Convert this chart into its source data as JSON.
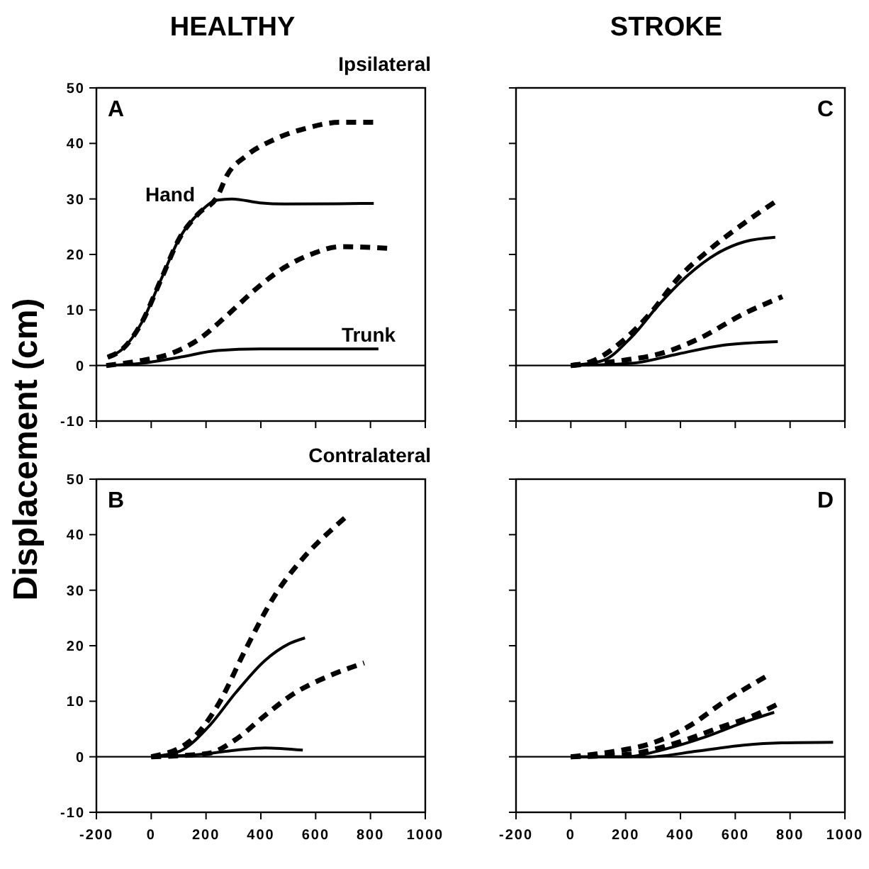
{
  "chart_data": [
    {
      "type": "line",
      "title": "HEALTHY",
      "subtitle": "Ipsilateral",
      "ylabel": "Displacement (cm)",
      "annotations": [
        "A",
        "Hand",
        "Trunk"
      ],
      "xlim": [
        -200,
        1000
      ],
      "xticks": [
        -200,
        0,
        200,
        400,
        600,
        800,
        1000
      ],
      "ylim": [
        -10,
        50
      ],
      "yticks": [
        -10,
        0,
        10,
        20,
        30,
        40,
        50
      ],
      "tick_labels": "y",
      "grid": false,
      "ref_lines": [
        {
          "axis": "y",
          "value": 0
        }
      ],
      "series": [
        {
          "color": "#000000",
          "line_style": "solid",
          "x": [
            -159,
            -104,
            -35,
            35,
            104,
            173,
            242,
            294,
            397,
            484,
            812
          ],
          "values": [
            1.5,
            3,
            7.7,
            15.4,
            23,
            27.4,
            29.8,
            30,
            29.3,
            29.1,
            29.2
          ]
        },
        {
          "color": "#000000",
          "line_style": "dashed",
          "x": [
            -159,
            -104,
            -35,
            35,
            104,
            173,
            242,
            276,
            345,
            449,
            570,
            691,
            829
          ],
          "values": [
            1.5,
            3,
            7.7,
            15.4,
            23,
            27.4,
            30.5,
            34.2,
            37.7,
            40.7,
            42.8,
            43.8,
            43.8
          ]
        },
        {
          "color": "#000000",
          "line_style": "dashed",
          "x": [
            -164,
            -35,
            69,
            173,
            276,
            380,
            484,
            587,
            691,
            864
          ],
          "values": [
            0,
            0.9,
            2.1,
            4.7,
            9,
            13.7,
            17.6,
            20.1,
            21.4,
            21.1
          ]
        },
        {
          "color": "#000000",
          "line_style": "solid",
          "x": [
            -164,
            -35,
            104,
            242,
            397,
            829
          ],
          "values": [
            0,
            0.4,
            1.5,
            2.7,
            3,
            3
          ]
        }
      ]
    },
    {
      "type": "line",
      "title": "STROKE",
      "annotations": [
        "C"
      ],
      "xlim": [
        -200,
        1000
      ],
      "xticks": [
        -200,
        0,
        200,
        400,
        600,
        800,
        1000
      ],
      "ylim": [
        -10,
        50
      ],
      "yticks": [
        -10,
        0,
        10,
        20,
        30,
        40,
        50
      ],
      "tick_labels": false,
      "grid": false,
      "ref_lines": [
        {
          "axis": "y",
          "value": 0
        }
      ],
      "series": [
        {
          "color": "#000000",
          "line_style": "dashed",
          "x": [
            0,
            83,
            186,
            290,
            393,
            497,
            634,
            746
          ],
          "values": [
            0,
            0.9,
            4.3,
            9.4,
            15.8,
            20.5,
            25.7,
            29.5
          ]
        },
        {
          "color": "#000000",
          "line_style": "solid",
          "x": [
            0,
            117,
            221,
            324,
            428,
            531,
            634,
            746
          ],
          "values": [
            0,
            0.9,
            5.1,
            11.1,
            16.3,
            20.1,
            22.3,
            23.1
          ]
        },
        {
          "color": "#000000",
          "line_style": "dashed",
          "x": [
            0,
            186,
            324,
            462,
            634,
            772
          ],
          "values": [
            0,
            0.9,
            2.1,
            4.7,
            9.4,
            12.4
          ]
        },
        {
          "color": "#000000",
          "line_style": "solid",
          "x": [
            0,
            221,
            393,
            548,
            755
          ],
          "values": [
            0,
            0.4,
            2.1,
            3.6,
            4.3
          ]
        }
      ]
    },
    {
      "type": "line",
      "subtitle": "Contralateral",
      "annotations": [
        "B"
      ],
      "xlim": [
        -200,
        1000
      ],
      "xticks": [
        -200,
        0,
        200,
        400,
        600,
        800,
        1000
      ],
      "ylim": [
        -10,
        50
      ],
      "yticks": [
        -10,
        0,
        10,
        20,
        30,
        40,
        50
      ],
      "grid": false,
      "ref_lines": [
        {
          "axis": "y",
          "value": 0
        }
      ],
      "series": [
        {
          "color": "#000000",
          "line_style": "dashed",
          "x": [
            0,
            138,
            242,
            345,
            449,
            553,
            656,
            725
          ],
          "values": [
            0,
            2.7,
            9.2,
            19.4,
            28.9,
            35.7,
            40.8,
            43.8
          ]
        },
        {
          "color": "#000000",
          "line_style": "solid",
          "x": [
            0,
            104,
            207,
            311,
            414,
            501,
            561
          ],
          "values": [
            0,
            1,
            5.3,
            11.7,
            17.3,
            20.3,
            21.4
          ]
        },
        {
          "color": "#000000",
          "line_style": "dashed",
          "x": [
            0,
            207,
            311,
            414,
            518,
            656,
            777
          ],
          "values": [
            0,
            0.6,
            3.2,
            7.4,
            11.3,
            14.7,
            16.9
          ]
        },
        {
          "color": "#000000",
          "line_style": "solid",
          "x": [
            0,
            173,
            311,
            414,
            553
          ],
          "values": [
            0,
            0.4,
            1.2,
            1.6,
            1.2
          ]
        }
      ]
    },
    {
      "type": "line",
      "annotations": [
        "D"
      ],
      "xlim": [
        -200,
        1000
      ],
      "xticks": [
        -200,
        0,
        200,
        400,
        600,
        800,
        1000
      ],
      "ylim": [
        -10,
        50
      ],
      "yticks": [
        -10,
        0,
        10,
        20,
        30,
        40,
        50
      ],
      "tick_labels": "x",
      "grid": false,
      "ref_lines": [
        {
          "axis": "y",
          "value": 0
        }
      ],
      "series": [
        {
          "color": "#000000",
          "line_style": "dashed",
          "x": [
            0,
            149,
            287,
            424,
            562,
            717
          ],
          "values": [
            0,
            0.9,
            2.3,
            5.3,
            10,
            14.6
          ]
        },
        {
          "color": "#000000",
          "line_style": "dashed",
          "x": [
            0,
            201,
            373,
            545,
            666,
            760
          ],
          "values": [
            0,
            0.4,
            2.3,
            5.3,
            7.4,
            9.6
          ]
        },
        {
          "color": "#000000",
          "line_style": "solid",
          "x": [
            0,
            201,
            338,
            493,
            631,
            742
          ],
          "values": [
            0,
            0,
            1.3,
            3.6,
            6.2,
            8
          ]
        },
        {
          "color": "#000000",
          "line_style": "solid",
          "x": [
            0,
            287,
            459,
            631,
            768,
            957
          ],
          "values": [
            0,
            0,
            1,
            2.1,
            2.5,
            2.6
          ]
        }
      ]
    }
  ]
}
